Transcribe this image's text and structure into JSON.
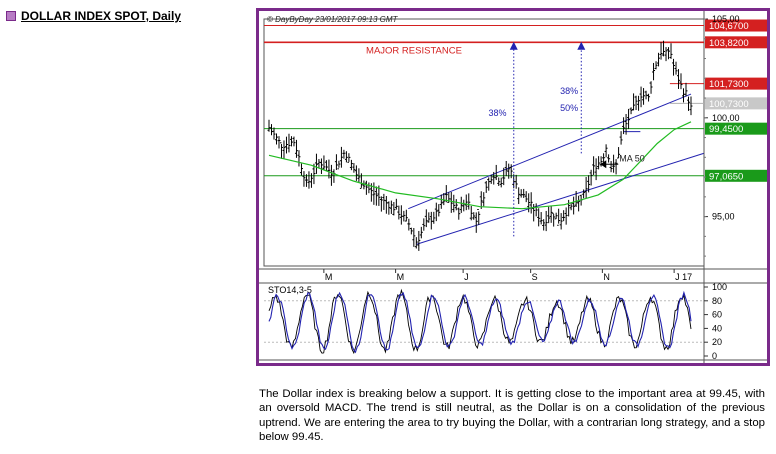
{
  "header": {
    "title": "DOLLAR INDEX SPOT, Daily"
  },
  "chart_data": {
    "type": "candlestick",
    "source_note": "© DayByDay 23/01/2017 09:13 GMT",
    "y_axis": {
      "range": [
        92.5,
        105.0
      ],
      "ticks": [
        {
          "label": "105,00",
          "value": 105.0
        },
        {
          "label": "100,00",
          "value": 100.0
        },
        {
          "label": "95,00",
          "value": 95.0
        }
      ]
    },
    "x_axis": {
      "labels": [
        "M",
        "M",
        "J",
        "S",
        "N",
        "J 17"
      ]
    },
    "price_levels": [
      {
        "label": "104,6700",
        "value": 104.67,
        "color": "#d42020"
      },
      {
        "label": "103,8200",
        "value": 103.82,
        "color": "#d42020"
      },
      {
        "label": "101,7300",
        "value": 101.73,
        "color": "#d42020"
      },
      {
        "label": "100,7300",
        "value": 100.73,
        "color": "#b0b0b0"
      },
      {
        "label": "99,4500",
        "value": 99.45,
        "color": "#1a9a1a"
      },
      {
        "label": "97,0650",
        "value": 97.065,
        "color": "#1a9a1a"
      }
    ],
    "annotations": {
      "resistance": "MAJOR RESISTANCE",
      "ma": "MA 50",
      "fib38_left": "38%",
      "fib38_right": "38%",
      "fib50": "50%"
    },
    "price_path": [
      [
        0,
        99.5
      ],
      [
        3,
        98.6
      ],
      [
        6,
        98.8
      ],
      [
        9,
        96.6
      ],
      [
        12,
        97.8
      ],
      [
        15,
        97.2
      ],
      [
        18,
        98.3
      ],
      [
        21,
        97.0
      ],
      [
        24,
        96.3
      ],
      [
        27,
        95.8
      ],
      [
        30,
        95.4
      ],
      [
        33,
        94.7
      ],
      [
        35,
        93.7
      ],
      [
        37,
        94.6
      ],
      [
        40,
        95.2
      ],
      [
        42,
        96.0
      ],
      [
        45,
        95.3
      ],
      [
        47,
        95.9
      ],
      [
        49,
        94.7
      ],
      [
        51,
        96.2
      ],
      [
        53,
        97.2
      ],
      [
        55,
        96.8
      ],
      [
        57,
        97.5
      ],
      [
        59,
        96.3
      ],
      [
        61,
        95.9
      ],
      [
        63,
        95.3
      ],
      [
        65,
        94.7
      ],
      [
        67,
        95.2
      ],
      [
        69,
        94.8
      ],
      [
        71,
        95.4
      ],
      [
        73,
        95.6
      ],
      [
        75,
        96.2
      ],
      [
        77,
        97.5
      ],
      [
        79,
        97.9
      ],
      [
        80,
        98.6
      ],
      [
        81,
        97.5
      ],
      [
        82,
        97.4
      ],
      [
        84,
        99.4
      ],
      [
        86,
        100.3
      ],
      [
        88,
        101.2
      ],
      [
        90,
        101.0
      ],
      [
        91,
        102.3
      ],
      [
        92,
        102.9
      ],
      [
        93,
        103.4
      ],
      [
        94,
        103.2
      ],
      [
        95,
        103.5
      ],
      [
        96,
        102.5
      ],
      [
        97,
        102.0
      ],
      [
        98,
        101.4
      ],
      [
        99,
        101.2
      ],
      [
        100,
        100.5
      ]
    ],
    "ma50_path": [
      [
        0,
        98.1
      ],
      [
        10,
        97.6
      ],
      [
        20,
        96.8
      ],
      [
        30,
        96.2
      ],
      [
        40,
        95.9
      ],
      [
        50,
        95.5
      ],
      [
        60,
        95.4
      ],
      [
        70,
        95.6
      ],
      [
        78,
        96.1
      ],
      [
        84,
        96.9
      ],
      [
        88,
        97.8
      ],
      [
        92,
        98.7
      ],
      [
        96,
        99.4
      ],
      [
        100,
        99.8
      ]
    ],
    "stochastic": {
      "title": "STO14,3-5",
      "range": [
        0,
        100
      ],
      "ticks": [
        "100",
        "80",
        "60",
        "40",
        "20",
        "0"
      ]
    }
  },
  "description": "The Dollar index is breaking below a support. It is getting close to the important area at 99.45, with an oversold MACD. The trend is still neutral, as the Dollar is on a consolidation of the previous uptrend. We are entering the area to try buying the Dollar, with a contrarian long strategy, and a stop below 99.45."
}
